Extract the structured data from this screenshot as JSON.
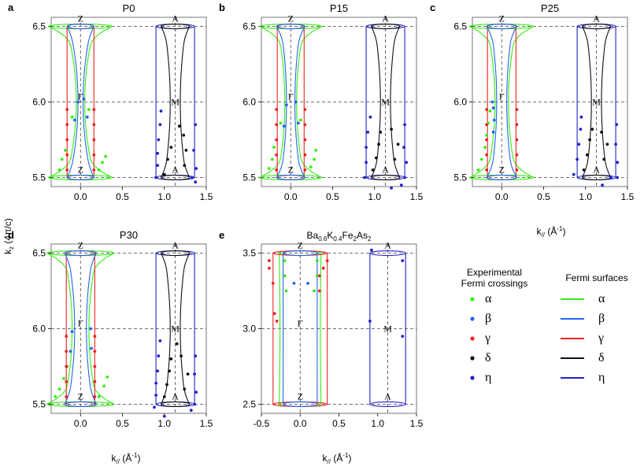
{
  "colors": {
    "alpha": "#33ee11",
    "beta": "#2266ee",
    "gamma": "#ee2222",
    "delta": "#111111",
    "eta": "#2222cc",
    "guide": "#444444",
    "frame": "#555555"
  },
  "axes": {
    "ylabel_main": "k",
    "ylabel_sub": "z",
    "ylabel_unit": " (4π/c)",
    "xlabel_main": "k",
    "xlabel_sub": "//",
    "xlabel_unit_open": " (Å",
    "xlabel_unit_sup": "-1",
    "xlabel_unit_close": ")"
  },
  "legend": {
    "exp_title_line1": "Experimental",
    "exp_title_line2": "Fermi crossings",
    "fs_title": "Fermi surfaces",
    "bands": [
      {
        "key": "alpha",
        "symbol": "α"
      },
      {
        "key": "beta",
        "symbol": "β"
      },
      {
        "key": "gamma",
        "symbol": "γ"
      },
      {
        "key": "delta",
        "symbol": "δ"
      },
      {
        "key": "eta",
        "symbol": "η"
      }
    ]
  },
  "chart_data": [
    {
      "panel": "a",
      "title": "P0",
      "type": "scatter",
      "xlim": [
        -0.35,
        1.5
      ],
      "ylim": [
        5.44,
        6.56
      ],
      "xticks": [
        "0.0",
        "0.5",
        "1.0",
        "1.5"
      ],
      "yticks": [
        "5.5",
        "6.0",
        "6.5"
      ],
      "show_xlabel": false,
      "show_ylabel": true,
      "labels": {
        "zTop": "Z",
        "gamma": "Γ",
        "zBot": "Z",
        "aTop": "A",
        "m": "M",
        "aBot": "A"
      },
      "surfaces": {
        "alpha": [
          0.17,
          0.05,
          0.38
        ],
        "beta": [
          0.13,
          0.03,
          0.16
        ],
        "gamma": [
          0.16,
          0.16,
          0.16
        ],
        "delta": [
          0.13,
          0.06,
          0.17
        ],
        "eta": [
          0.23,
          0.23,
          0.23
        ]
      },
      "points": {
        "alpha": [
          [
            -0.25,
            5.55
          ],
          [
            -0.22,
            5.62
          ],
          [
            -0.18,
            5.68
          ],
          [
            0.22,
            5.55
          ],
          [
            0.26,
            5.6
          ],
          [
            0.3,
            5.64
          ],
          [
            -0.1,
            5.9
          ],
          [
            0.1,
            5.95
          ]
        ],
        "beta": [
          [
            -0.07,
            5.88
          ],
          [
            0.08,
            5.9
          ],
          [
            -0.03,
            6.0
          ],
          [
            0.04,
            6.02
          ]
        ],
        "gamma": [
          [
            -0.16,
            5.55
          ],
          [
            -0.16,
            5.65
          ],
          [
            -0.16,
            5.75
          ],
          [
            -0.16,
            5.85
          ],
          [
            -0.16,
            5.95
          ],
          [
            0.16,
            5.55
          ],
          [
            0.16,
            5.65
          ],
          [
            0.16,
            5.75
          ],
          [
            0.16,
            5.85
          ],
          [
            0.16,
            5.95
          ]
        ],
        "delta": [
          [
            1.0,
            5.52
          ],
          [
            1.04,
            5.62
          ],
          [
            1.08,
            5.7
          ],
          [
            1.24,
            5.58
          ],
          [
            1.26,
            5.68
          ],
          [
            1.23,
            5.78
          ],
          [
            1.18,
            5.84
          ]
        ],
        "eta": [
          [
            0.9,
            5.5
          ],
          [
            0.92,
            5.58
          ],
          [
            0.92,
            5.66
          ],
          [
            0.93,
            5.75
          ],
          [
            0.95,
            5.85
          ],
          [
            0.96,
            5.94
          ],
          [
            1.37,
            5.47
          ],
          [
            1.38,
            5.56
          ],
          [
            1.35,
            5.68
          ],
          [
            1.37,
            5.85
          ],
          [
            1.33,
            5.5
          ]
        ]
      }
    },
    {
      "panel": "b",
      "title": "P15",
      "type": "scatter",
      "xlim": [
        -0.35,
        1.5
      ],
      "ylim": [
        5.44,
        6.56
      ],
      "xticks": [
        "0.0",
        "0.5",
        "1.0",
        "1.5"
      ],
      "yticks": [
        "5.5",
        "6.0",
        "6.5"
      ],
      "show_xlabel": false,
      "show_ylabel": false,
      "labels": {
        "zTop": "Z",
        "gamma": "Γ",
        "zBot": "Z",
        "aTop": "A",
        "m": "M",
        "aBot": "A"
      },
      "surfaces": {
        "alpha": [
          0.16,
          0.07,
          0.37
        ],
        "beta": [
          0.12,
          0.05,
          0.17
        ],
        "gamma": [
          0.16,
          0.16,
          0.16
        ],
        "delta": [
          0.13,
          0.06,
          0.17
        ],
        "eta": [
          0.23,
          0.23,
          0.23
        ]
      },
      "points": {
        "alpha": [
          [
            -0.26,
            5.56
          ],
          [
            -0.22,
            5.62
          ],
          [
            -0.2,
            5.7
          ],
          [
            0.24,
            5.57
          ],
          [
            0.28,
            5.62
          ],
          [
            0.3,
            5.68
          ],
          [
            -0.12,
            5.86
          ],
          [
            0.12,
            5.88
          ]
        ],
        "beta": [
          [
            -0.08,
            5.84
          ],
          [
            0.09,
            5.86
          ],
          [
            -0.05,
            5.98
          ],
          [
            0.06,
            6.0
          ]
        ],
        "gamma": [
          [
            -0.17,
            5.55
          ],
          [
            -0.17,
            5.65
          ],
          [
            -0.17,
            5.75
          ],
          [
            -0.17,
            5.85
          ],
          [
            -0.17,
            5.95
          ],
          [
            0.17,
            5.55
          ],
          [
            0.17,
            5.65
          ],
          [
            0.17,
            5.75
          ],
          [
            0.17,
            5.85
          ],
          [
            0.17,
            5.95
          ]
        ],
        "delta": [
          [
            0.98,
            5.55
          ],
          [
            1.02,
            5.63
          ],
          [
            1.05,
            5.72
          ],
          [
            1.07,
            5.8
          ],
          [
            1.24,
            5.62
          ],
          [
            1.28,
            5.72
          ],
          [
            1.2,
            5.82
          ]
        ],
        "eta": [
          [
            0.88,
            5.5
          ],
          [
            0.9,
            5.6
          ],
          [
            0.9,
            5.7
          ],
          [
            0.92,
            5.8
          ],
          [
            0.95,
            5.9
          ],
          [
            1.36,
            5.5
          ],
          [
            1.38,
            5.6
          ],
          [
            1.35,
            5.7
          ],
          [
            1.36,
            5.85
          ],
          [
            1.32,
            5.45
          ],
          [
            1.2,
            5.43
          ]
        ]
      }
    },
    {
      "panel": "c",
      "title": "P25",
      "type": "scatter",
      "xlim": [
        -0.35,
        1.5
      ],
      "ylim": [
        5.44,
        6.56
      ],
      "xticks": [
        "0.0",
        "0.5",
        "1.0",
        "1.5"
      ],
      "yticks": [
        "5.5",
        "6.0",
        "6.5"
      ],
      "show_xlabel": true,
      "show_ylabel": false,
      "labels": {
        "zTop": "Z",
        "gamma": "Γ",
        "zBot": "Z",
        "aTop": "A",
        "m": "M",
        "aBot": "A"
      },
      "surfaces": {
        "alpha": [
          0.18,
          0.08,
          0.38
        ],
        "beta": [
          0.13,
          0.06,
          0.18
        ],
        "gamma": [
          0.17,
          0.17,
          0.17
        ],
        "delta": [
          0.13,
          0.06,
          0.17
        ],
        "eta": [
          0.23,
          0.23,
          0.23
        ]
      },
      "points": {
        "alpha": [
          [
            -0.28,
            5.55
          ],
          [
            -0.24,
            5.62
          ],
          [
            -0.2,
            5.7
          ],
          [
            -0.18,
            5.78
          ],
          [
            -0.16,
            5.86
          ],
          [
            -0.14,
            5.94
          ]
        ],
        "beta": [
          [
            -0.1,
            5.8
          ],
          [
            -0.09,
            5.88
          ],
          [
            -0.1,
            5.96
          ],
          [
            -0.11,
            6.0
          ]
        ],
        "gamma": [
          [
            -0.18,
            5.55
          ],
          [
            -0.18,
            5.65
          ],
          [
            -0.18,
            5.75
          ],
          [
            -0.18,
            5.85
          ],
          [
            -0.18,
            5.95
          ],
          [
            0.18,
            5.55
          ],
          [
            0.18,
            5.65
          ],
          [
            0.18,
            5.75
          ],
          [
            0.18,
            5.85
          ],
          [
            0.18,
            5.95
          ]
        ],
        "delta": [
          [
            0.98,
            5.55
          ],
          [
            1.02,
            5.65
          ],
          [
            1.05,
            5.75
          ],
          [
            1.08,
            5.82
          ],
          [
            1.22,
            5.62
          ],
          [
            1.26,
            5.72
          ],
          [
            1.19,
            5.8
          ]
        ],
        "eta": [
          [
            0.86,
            5.52
          ],
          [
            0.9,
            5.62
          ],
          [
            0.92,
            5.72
          ],
          [
            0.94,
            5.82
          ],
          [
            0.95,
            5.9
          ],
          [
            1.38,
            5.5
          ],
          [
            1.38,
            5.6
          ],
          [
            1.36,
            5.72
          ],
          [
            1.37,
            5.85
          ],
          [
            1.3,
            5.5
          ],
          [
            1.2,
            5.45
          ]
        ]
      }
    },
    {
      "panel": "d",
      "title": "P30",
      "type": "scatter",
      "xlim": [
        -0.35,
        1.5
      ],
      "ylim": [
        5.44,
        6.56
      ],
      "xticks": [
        "0.0",
        "0.5",
        "1.0",
        "1.5"
      ],
      "yticks": [
        "5.5",
        "6.0",
        "6.5"
      ],
      "show_xlabel": true,
      "show_ylabel": false,
      "labels": {
        "zTop": "Z",
        "gamma": "Γ",
        "zBot": "Z",
        "aTop": "A",
        "m": "M",
        "aBot": "A"
      },
      "surfaces": {
        "alpha": [
          0.2,
          0.1,
          0.4
        ],
        "beta": [
          0.15,
          0.07,
          0.19
        ],
        "gamma": [
          0.17,
          0.17,
          0.17
        ],
        "delta": [
          0.13,
          0.06,
          0.17
        ],
        "eta": [
          0.23,
          0.23,
          0.23
        ]
      },
      "points": {
        "alpha": [
          [
            -0.3,
            5.55
          ],
          [
            -0.25,
            5.6
          ],
          [
            -0.2,
            5.67
          ],
          [
            -0.16,
            5.75
          ],
          [
            0.22,
            5.55
          ],
          [
            0.28,
            5.62
          ],
          [
            0.32,
            5.68
          ]
        ],
        "beta": [
          [
            -0.12,
            5.85
          ],
          [
            0.13,
            5.87
          ],
          [
            -0.1,
            5.98
          ],
          [
            0.12,
            6.0
          ]
        ],
        "gamma": [
          [
            -0.17,
            5.55
          ],
          [
            -0.17,
            5.65
          ],
          [
            -0.17,
            5.75
          ],
          [
            -0.17,
            5.85
          ],
          [
            -0.17,
            5.95
          ],
          [
            0.17,
            5.55
          ],
          [
            0.17,
            5.65
          ],
          [
            0.17,
            5.75
          ],
          [
            0.17,
            5.85
          ],
          [
            0.17,
            5.95
          ]
        ],
        "delta": [
          [
            1.0,
            5.55
          ],
          [
            1.03,
            5.63
          ],
          [
            1.06,
            5.72
          ],
          [
            1.08,
            5.8
          ],
          [
            1.24,
            5.6
          ],
          [
            1.28,
            5.7
          ],
          [
            1.2,
            5.82
          ],
          [
            1.15,
            5.9
          ]
        ],
        "eta": [
          [
            0.88,
            5.48
          ],
          [
            0.9,
            5.56
          ],
          [
            0.9,
            5.64
          ],
          [
            0.92,
            5.72
          ],
          [
            0.93,
            5.82
          ],
          [
            0.95,
            5.92
          ],
          [
            1.36,
            5.5
          ],
          [
            1.38,
            5.58
          ],
          [
            1.36,
            5.7
          ],
          [
            1.37,
            5.82
          ],
          [
            1.32,
            5.46
          ],
          [
            1.0,
            5.42
          ]
        ]
      }
    },
    {
      "panel": "e",
      "title_main": "Ba",
      "title_sub1": "0.6",
      "title_k": "K",
      "title_sub2": "0.4",
      "title_fe": "Fe",
      "title_sub3": "2",
      "title_as": "As",
      "title_sub4": "2",
      "type": "scatter",
      "xlim": [
        -0.5,
        1.5
      ],
      "ylim": [
        2.44,
        3.56
      ],
      "xticks": [
        "-0.5",
        "0.0",
        "0.5",
        "1.0",
        "1.5"
      ],
      "yticks": [
        "2.5",
        "3.0",
        "3.5"
      ],
      "show_xlabel": true,
      "show_ylabel": false,
      "labels": {
        "zTop": "Z",
        "gamma": "Γ",
        "zBot": "Z",
        "aTop": "A",
        "m": "M",
        "aBot": "A"
      },
      "surfaces": {
        "alpha": [
          0.27,
          0.26,
          0.27
        ],
        "beta": [
          0.22,
          0.22,
          0.22
        ],
        "gamma": [
          0.35,
          0.35,
          0.35
        ],
        "delta": null,
        "eta": [
          0.23,
          0.23,
          0.23
        ]
      },
      "points": {
        "alpha": [
          [
            -0.2,
            3.45
          ],
          [
            -0.2,
            3.35
          ],
          [
            0.22,
            3.45
          ],
          [
            0.22,
            3.35
          ],
          [
            0.18,
            3.25
          ],
          [
            -0.18,
            3.25
          ]
        ],
        "beta": [
          [
            -0.08,
            3.3
          ],
          [
            0.1,
            3.3
          ]
        ],
        "gamma": [
          [
            -0.4,
            3.45
          ],
          [
            -0.4,
            3.4
          ],
          [
            -0.35,
            3.3
          ],
          [
            -0.33,
            3.1
          ],
          [
            -0.3,
            3.05
          ],
          [
            0.35,
            3.45
          ],
          [
            0.3,
            3.4
          ],
          [
            0.25,
            3.35
          ],
          [
            0.25,
            3.25
          ]
        ],
        "delta": [],
        "eta": [
          [
            0.92,
            3.52
          ],
          [
            0.9,
            3.05
          ],
          [
            1.32,
            3.45
          ],
          [
            1.32,
            2.95
          ]
        ]
      }
    }
  ]
}
